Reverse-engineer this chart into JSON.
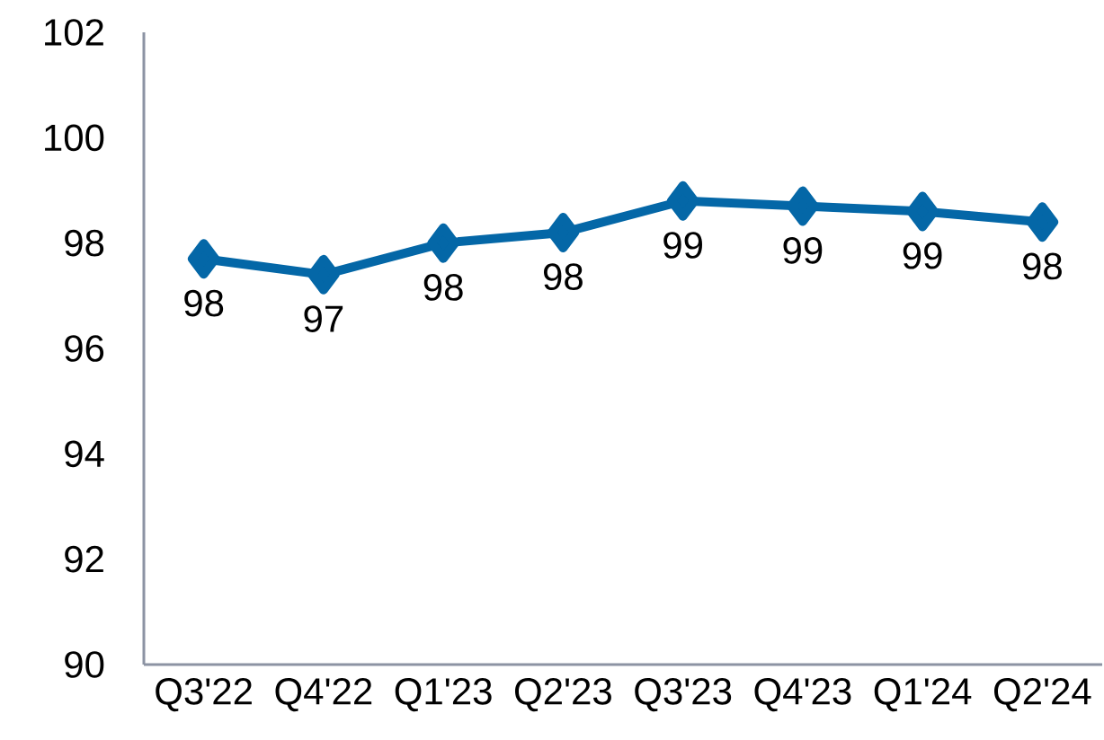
{
  "chart_data": {
    "type": "line",
    "categories": [
      "Q3'22",
      "Q4'22",
      "Q1'23",
      "Q2'23",
      "Q3'23",
      "Q4'23",
      "Q1'24",
      "Q2'24"
    ],
    "series": [
      {
        "color": "#0467a7",
        "values": [
          97.7,
          97.4,
          98.0,
          98.2,
          98.8,
          98.7,
          98.6,
          98.4
        ],
        "value_labels": [
          "98",
          "97",
          "98",
          "98",
          "99",
          "99",
          "99",
          "98"
        ]
      }
    ],
    "ylim": [
      90,
      102
    ],
    "yticks": [
      90,
      92,
      94,
      96,
      98,
      100,
      102
    ],
    "marker": "diamond",
    "line_style": "solid"
  }
}
